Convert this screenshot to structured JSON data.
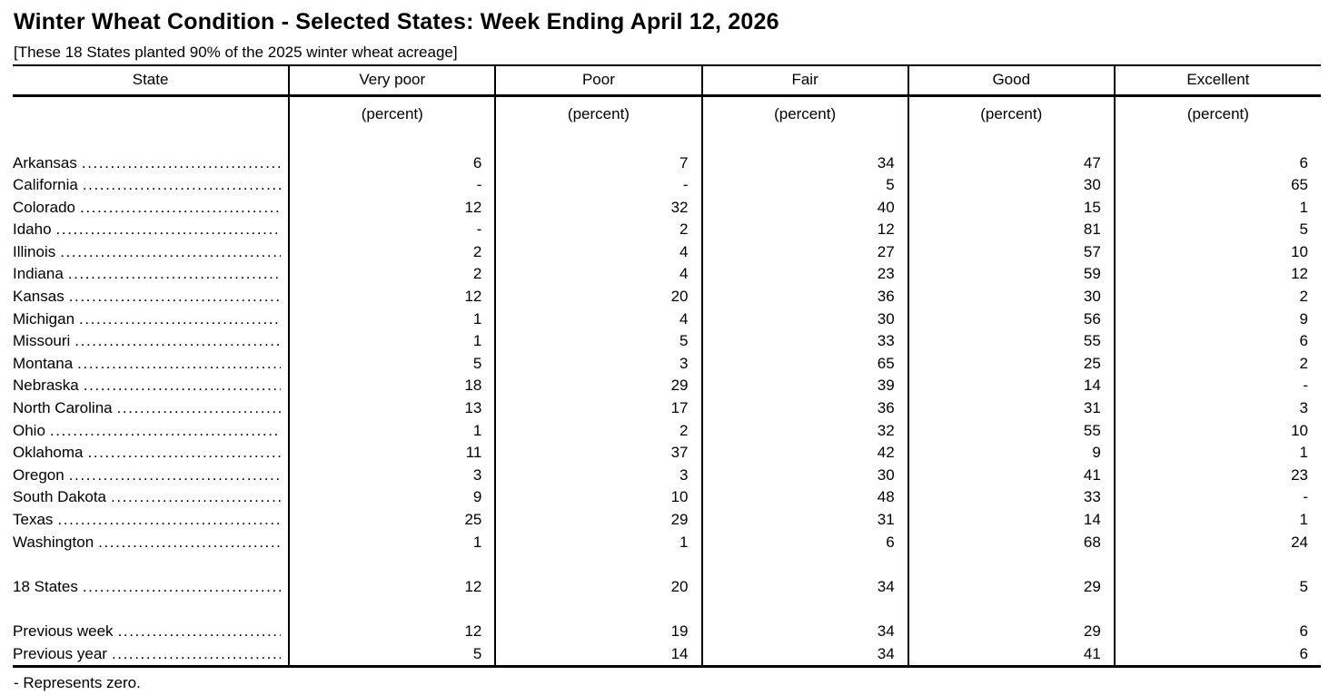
{
  "title": "Winter Wheat Condition - Selected States: Week Ending April 12, 2026",
  "subtitle": "[These 18 States planted 90% of the 2025 winter wheat acreage]",
  "footnote": "- Represents zero.",
  "zero_symbol": "-",
  "table": {
    "columns": [
      "State",
      "Very poor",
      "Poor",
      "Fair",
      "Good",
      "Excellent"
    ],
    "unit_label": "(percent)",
    "state_rows": [
      {
        "state": "Arkansas",
        "values": [
          "6",
          "7",
          "34",
          "47",
          "6"
        ]
      },
      {
        "state": "California",
        "values": [
          "-",
          "-",
          "5",
          "30",
          "65"
        ]
      },
      {
        "state": "Colorado",
        "values": [
          "12",
          "32",
          "40",
          "15",
          "1"
        ]
      },
      {
        "state": "Idaho",
        "values": [
          "-",
          "2",
          "12",
          "81",
          "5"
        ]
      },
      {
        "state": "Illinois",
        "values": [
          "2",
          "4",
          "27",
          "57",
          "10"
        ]
      },
      {
        "state": "Indiana",
        "values": [
          "2",
          "4",
          "23",
          "59",
          "12"
        ]
      },
      {
        "state": "Kansas",
        "values": [
          "12",
          "20",
          "36",
          "30",
          "2"
        ]
      },
      {
        "state": "Michigan",
        "values": [
          "1",
          "4",
          "30",
          "56",
          "9"
        ]
      },
      {
        "state": "Missouri",
        "values": [
          "1",
          "5",
          "33",
          "55",
          "6"
        ]
      },
      {
        "state": "Montana",
        "values": [
          "5",
          "3",
          "65",
          "25",
          "2"
        ]
      },
      {
        "state": "Nebraska",
        "values": [
          "18",
          "29",
          "39",
          "14",
          "-"
        ]
      },
      {
        "state": "North Carolina",
        "values": [
          "13",
          "17",
          "36",
          "31",
          "3"
        ]
      },
      {
        "state": "Ohio",
        "values": [
          "1",
          "2",
          "32",
          "55",
          "10"
        ]
      },
      {
        "state": "Oklahoma",
        "values": [
          "11",
          "37",
          "42",
          "9",
          "1"
        ]
      },
      {
        "state": "Oregon",
        "values": [
          "3",
          "3",
          "30",
          "41",
          "23"
        ]
      },
      {
        "state": "South Dakota",
        "values": [
          "9",
          "10",
          "48",
          "33",
          "-"
        ]
      },
      {
        "state": "Texas",
        "values": [
          "25",
          "29",
          "31",
          "14",
          "1"
        ]
      },
      {
        "state": "Washington",
        "values": [
          "1",
          "1",
          "6",
          "68",
          "24"
        ]
      }
    ],
    "total_row": {
      "state": "18 States",
      "values": [
        "12",
        "20",
        "34",
        "29",
        "5"
      ]
    },
    "comparison_rows": [
      {
        "state": "Previous week",
        "values": [
          "12",
          "19",
          "34",
          "29",
          "6"
        ]
      },
      {
        "state": "Previous year",
        "values": [
          "5",
          "14",
          "34",
          "41",
          "6"
        ]
      }
    ]
  }
}
